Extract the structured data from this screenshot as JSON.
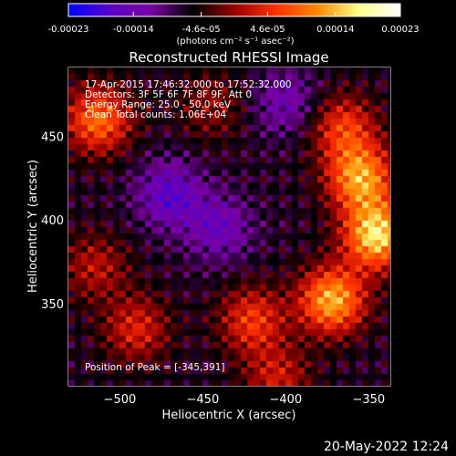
{
  "colorbar": {
    "tick_labels": [
      "-0.00023",
      "-0.00014",
      "-4.6e-05",
      "4.6e-05",
      "0.00014",
      "0.00023"
    ],
    "tick_values": [
      -0.00023,
      -0.00014,
      -4.6e-05,
      4.6e-05,
      0.00014,
      0.00023
    ],
    "range": [
      -0.00023,
      0.00023
    ],
    "unit_label": "(photons cm⁻² s⁻¹ asec⁻²)",
    "colors": [
      "#0000ff",
      "#5a00c8",
      "#7a00a0",
      "#000000",
      "#9a0000",
      "#ff3000",
      "#ff8800",
      "#ffff88",
      "#ffffff"
    ]
  },
  "chart_data": {
    "type": "heatmap",
    "title": "Reconstructed RHESSI Image",
    "xlabel": "Heliocentric X (arcsec)",
    "ylabel": "Heliocentric Y (arcsec)",
    "xlim": [
      -531,
      -337
    ],
    "ylim": [
      301,
      491
    ],
    "x_ticks": [
      -500,
      -450,
      -400,
      -350
    ],
    "x_tick_labels": [
      "−500",
      "−450",
      "−400",
      "−350"
    ],
    "y_ticks": [
      350,
      400,
      450
    ],
    "y_tick_labels": [
      "350",
      "400",
      "450"
    ],
    "peak": [
      -345,
      391
    ],
    "hotspots": [
      {
        "x": -345,
        "y": 391,
        "value": 0.00023
      },
      {
        "x": -355,
        "y": 425,
        "value": 0.00019
      },
      {
        "x": -372,
        "y": 352,
        "value": 0.0002
      },
      {
        "x": -365,
        "y": 455,
        "value": 0.00012
      },
      {
        "x": -513,
        "y": 460,
        "value": 0.00016
      },
      {
        "x": -420,
        "y": 340,
        "value": 0.00012
      },
      {
        "x": -490,
        "y": 335,
        "value": 0.0001
      },
      {
        "x": -445,
        "y": 468,
        "value": 6e-05
      },
      {
        "x": -515,
        "y": 372,
        "value": 8e-05
      },
      {
        "x": -405,
        "y": 305,
        "value": 9e-05
      },
      {
        "x": -470,
        "y": 415,
        "value": -0.0001
      },
      {
        "x": -440,
        "y": 395,
        "value": -8e-05
      },
      {
        "x": -400,
        "y": 470,
        "value": -7e-05
      }
    ],
    "grid": false
  },
  "annotations": {
    "time_range": "17-Apr-2015 17:46:32.000 to 17:52:32.000",
    "detectors": "Detectors: 3F 5F 6F 7F 8F 9F, Att 0",
    "energy": "Energy Range: 25.0 - 50.0 keV",
    "clean": "Clean    Total counts: 1.06E+04",
    "peak_label": "Position of Peak = [-345,391]"
  },
  "footer": {
    "date": "20-May-2022 12:24"
  }
}
